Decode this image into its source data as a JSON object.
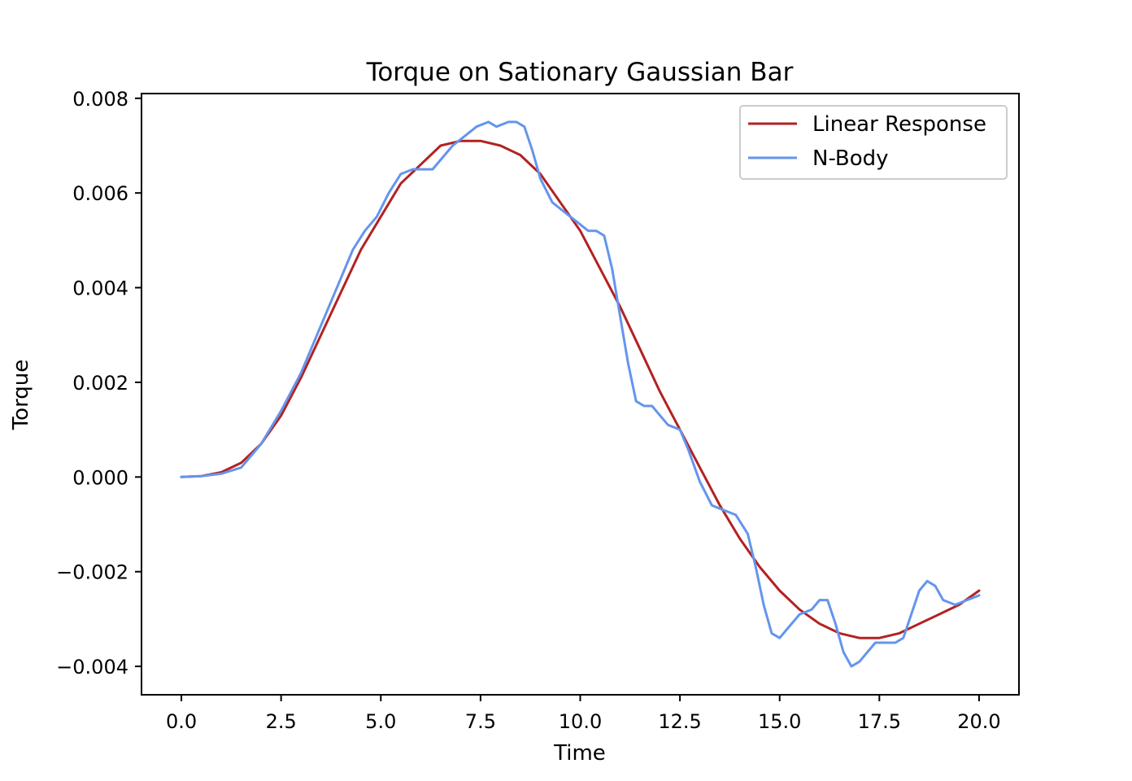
{
  "chart_data": {
    "type": "line",
    "title": "Torque on Sationary Gaussian Bar",
    "xlabel": "Time",
    "ylabel": "Torque",
    "xlim": [
      -1.0,
      21.0
    ],
    "ylim": [
      -0.0046,
      0.0081
    ],
    "xticks": [
      0.0,
      2.5,
      5.0,
      7.5,
      10.0,
      12.5,
      15.0,
      17.5,
      20.0
    ],
    "xtick_labels": [
      "0.0",
      "2.5",
      "5.0",
      "7.5",
      "10.0",
      "12.5",
      "15.0",
      "17.5",
      "20.0"
    ],
    "yticks": [
      -0.004,
      -0.002,
      0.0,
      0.002,
      0.004,
      0.006,
      0.008
    ],
    "ytick_labels": [
      "−0.004",
      "−0.002",
      "0.000",
      "0.002",
      "0.004",
      "0.006",
      "0.008"
    ],
    "grid": false,
    "legend_position": "top-right",
    "series": [
      {
        "name": "Linear Response",
        "color": "#b22222",
        "x": [
          0,
          0.5,
          1,
          1.5,
          2,
          2.5,
          3,
          3.5,
          4,
          4.5,
          5,
          5.5,
          6,
          6.5,
          7,
          7.5,
          8,
          8.5,
          9,
          9.5,
          10,
          10.5,
          11,
          11.5,
          12,
          12.5,
          13,
          13.5,
          14,
          14.5,
          15,
          15.5,
          16,
          16.5,
          17,
          17.5,
          18,
          18.5,
          19,
          19.5,
          20
        ],
        "y": [
          0.0,
          2e-05,
          0.0001,
          0.0003,
          0.0007,
          0.0013,
          0.0021,
          0.003,
          0.0039,
          0.0048,
          0.0055,
          0.0062,
          0.0066,
          0.007,
          0.0071,
          0.0071,
          0.007,
          0.0068,
          0.0064,
          0.0058,
          0.0052,
          0.0044,
          0.0036,
          0.0027,
          0.0018,
          0.001,
          0.0002,
          -0.0006,
          -0.0013,
          -0.0019,
          -0.0024,
          -0.0028,
          -0.0031,
          -0.0033,
          -0.0034,
          -0.0034,
          -0.0033,
          -0.0031,
          -0.0029,
          -0.0027,
          -0.0024
        ]
      },
      {
        "name": "N-Body",
        "color": "#6495ed",
        "x": [
          0,
          0.5,
          1,
          1.5,
          2,
          2.5,
          3,
          3.5,
          4,
          4.3,
          4.6,
          4.9,
          5.2,
          5.5,
          5.8,
          6.1,
          6.3,
          6.5,
          6.8,
          7.1,
          7.4,
          7.7,
          7.9,
          8.2,
          8.4,
          8.6,
          8.8,
          9.0,
          9.3,
          9.6,
          9.9,
          10.2,
          10.4,
          10.6,
          10.8,
          11.0,
          11.2,
          11.4,
          11.6,
          11.8,
          12.0,
          12.2,
          12.5,
          12.7,
          13.0,
          13.3,
          13.6,
          13.9,
          14.2,
          14.4,
          14.6,
          14.8,
          15.0,
          15.2,
          15.5,
          15.8,
          16.0,
          16.2,
          16.4,
          16.6,
          16.8,
          17.0,
          17.2,
          17.4,
          17.6,
          17.9,
          18.1,
          18.3,
          18.5,
          18.7,
          18.9,
          19.1,
          19.4,
          19.7,
          20.0
        ],
        "y": [
          0.0,
          2e-05,
          7e-05,
          0.0002,
          0.0007,
          0.0014,
          0.0022,
          0.0032,
          0.0042,
          0.0048,
          0.0052,
          0.0055,
          0.006,
          0.0064,
          0.0065,
          0.0065,
          0.0065,
          0.0067,
          0.007,
          0.0072,
          0.0074,
          0.0075,
          0.0074,
          0.0075,
          0.0075,
          0.0074,
          0.0069,
          0.0063,
          0.0058,
          0.0056,
          0.0054,
          0.0052,
          0.0052,
          0.0051,
          0.0044,
          0.0034,
          0.0024,
          0.0016,
          0.0015,
          0.0015,
          0.0013,
          0.0011,
          0.001,
          0.0006,
          -0.0001,
          -0.0006,
          -0.0007,
          -0.0008,
          -0.0012,
          -0.0019,
          -0.0027,
          -0.0033,
          -0.0034,
          -0.0032,
          -0.0029,
          -0.0028,
          -0.0026,
          -0.0026,
          -0.0031,
          -0.0037,
          -0.004,
          -0.0039,
          -0.0037,
          -0.0035,
          -0.0035,
          -0.0035,
          -0.0034,
          -0.0029,
          -0.0024,
          -0.0022,
          -0.0023,
          -0.0026,
          -0.0027,
          -0.0026,
          -0.0025
        ]
      }
    ]
  }
}
